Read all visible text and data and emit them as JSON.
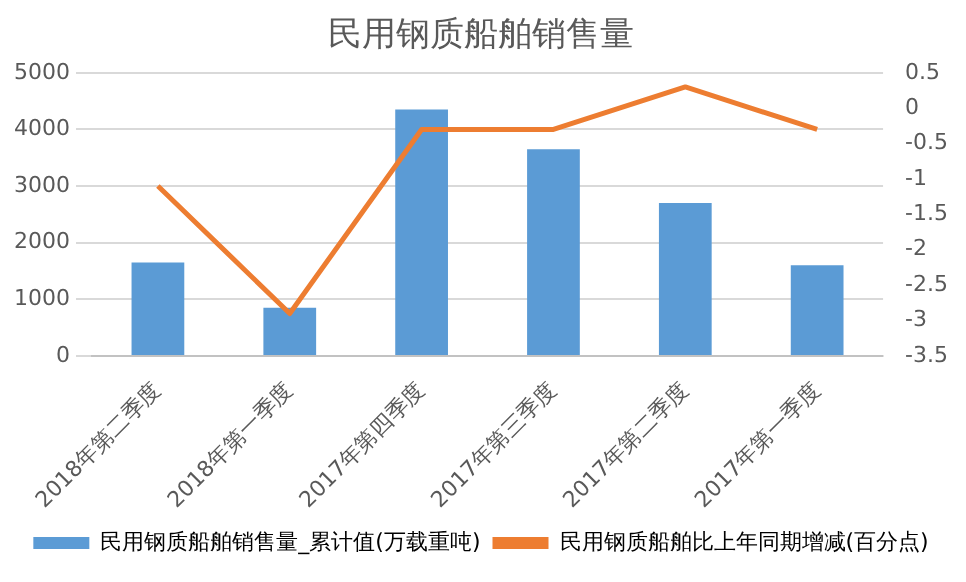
{
  "chart_data": {
    "type": "bar",
    "title": "民用钢质船舶销售量",
    "categories": [
      "2018年第二季度",
      "2018年第一季度",
      "2017年第四季度",
      "2017年第三季度",
      "2017年第二季度",
      "2017年第一季度"
    ],
    "series": [
      {
        "name": "民用钢质船舶销售量_累计值(万载重吨)",
        "color": "#5b9bd5",
        "values": [
          1650,
          850,
          4350,
          3650,
          2700,
          1600
        ]
      },
      {
        "name": "民用钢质船舶比上年同期增减(百分点)",
        "type": "line",
        "axis": "y2",
        "color": "#ed7d31",
        "values": [
          -1.1,
          -2.9,
          -0.3,
          -0.3,
          0.3,
          -0.3
        ]
      }
    ],
    "ylim": [
      0,
      5000
    ],
    "yticks": [
      0,
      1000,
      2000,
      3000,
      4000,
      5000
    ],
    "y2lim": [
      -3.5,
      0.5
    ],
    "y2ticks": [
      -3.5,
      -3,
      -2.5,
      -2,
      -1.5,
      -1,
      -0.5,
      0,
      0.5
    ],
    "grid": "y",
    "legend": "bottom",
    "marker": "none",
    "line_style": "solid"
  }
}
